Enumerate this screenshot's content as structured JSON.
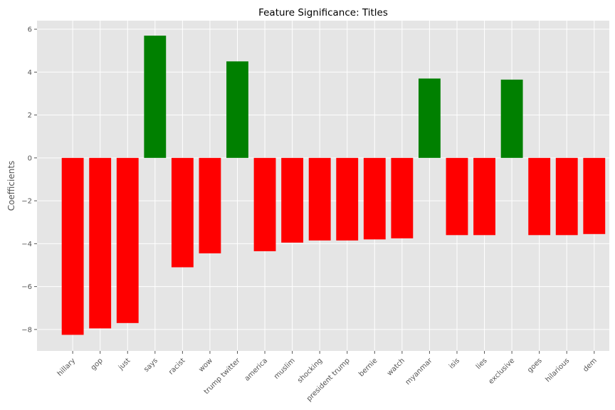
{
  "chart_data": {
    "type": "bar",
    "title": "Feature Significance: Titles",
    "xlabel": "",
    "ylabel": "Coefficients",
    "ylim": [
      -9,
      6.4
    ],
    "yticks": [
      6,
      4,
      2,
      0,
      -2,
      -4,
      -6,
      -8
    ],
    "ytick_labels": [
      "6",
      "4",
      "2",
      "0",
      "−2",
      "−4",
      "−6",
      "−8"
    ],
    "grid": true,
    "categories": [
      "hillary",
      "gop",
      "just",
      "says",
      "racist",
      "wow",
      "trump twitter",
      "america",
      "muslim",
      "shocking",
      "president trump",
      "bernie",
      "watch",
      "myanmar",
      "isis",
      "lies",
      "exclusive",
      "goes",
      "hilarious",
      "dem"
    ],
    "values": [
      -8.25,
      -7.95,
      -7.7,
      5.7,
      -5.1,
      -4.45,
      4.5,
      -4.35,
      -3.95,
      -3.85,
      -3.85,
      -3.8,
      -3.75,
      3.7,
      -3.6,
      -3.6,
      3.65,
      -3.6,
      -3.6,
      -3.55
    ],
    "positive_color": "#008000",
    "negative_color": "#ff0000",
    "background_color": "#e5e5e5",
    "grid_color": "#ffffff"
  }
}
